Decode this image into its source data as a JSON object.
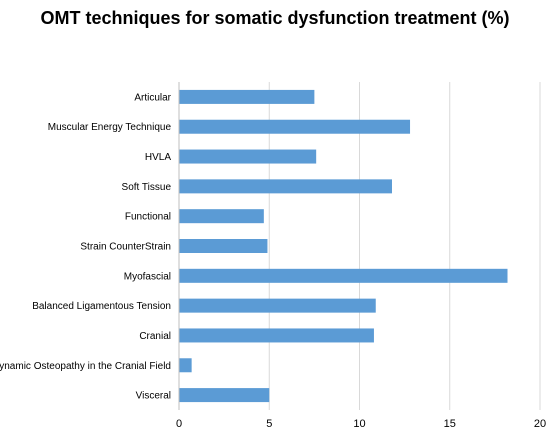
{
  "chart_data": {
    "type": "bar",
    "orientation": "horizontal",
    "title": "OMT techniques for somatic dysfunction treatment (%)",
    "categories": [
      "Articular",
      "Muscular Energy Technique",
      "HVLA",
      "Soft Tissue",
      "Functional",
      "Strain CounterStrain",
      "Myofascial",
      "Balanced Ligamentous Tension",
      "Cranial",
      "Biodynamic Osteopathy in the Cranial Field",
      "Visceral"
    ],
    "values": [
      7.5,
      12.8,
      7.6,
      11.8,
      4.7,
      4.9,
      18.2,
      10.9,
      10.8,
      0.7,
      5.0
    ],
    "xlim": [
      0,
      20
    ],
    "xticks": [
      "0",
      "5",
      "10",
      "15",
      "20"
    ],
    "grid": "vertical major gridlines",
    "legend": "none",
    "bar_color": "#5b9bd5",
    "grid_color": "#d9d9d9"
  }
}
